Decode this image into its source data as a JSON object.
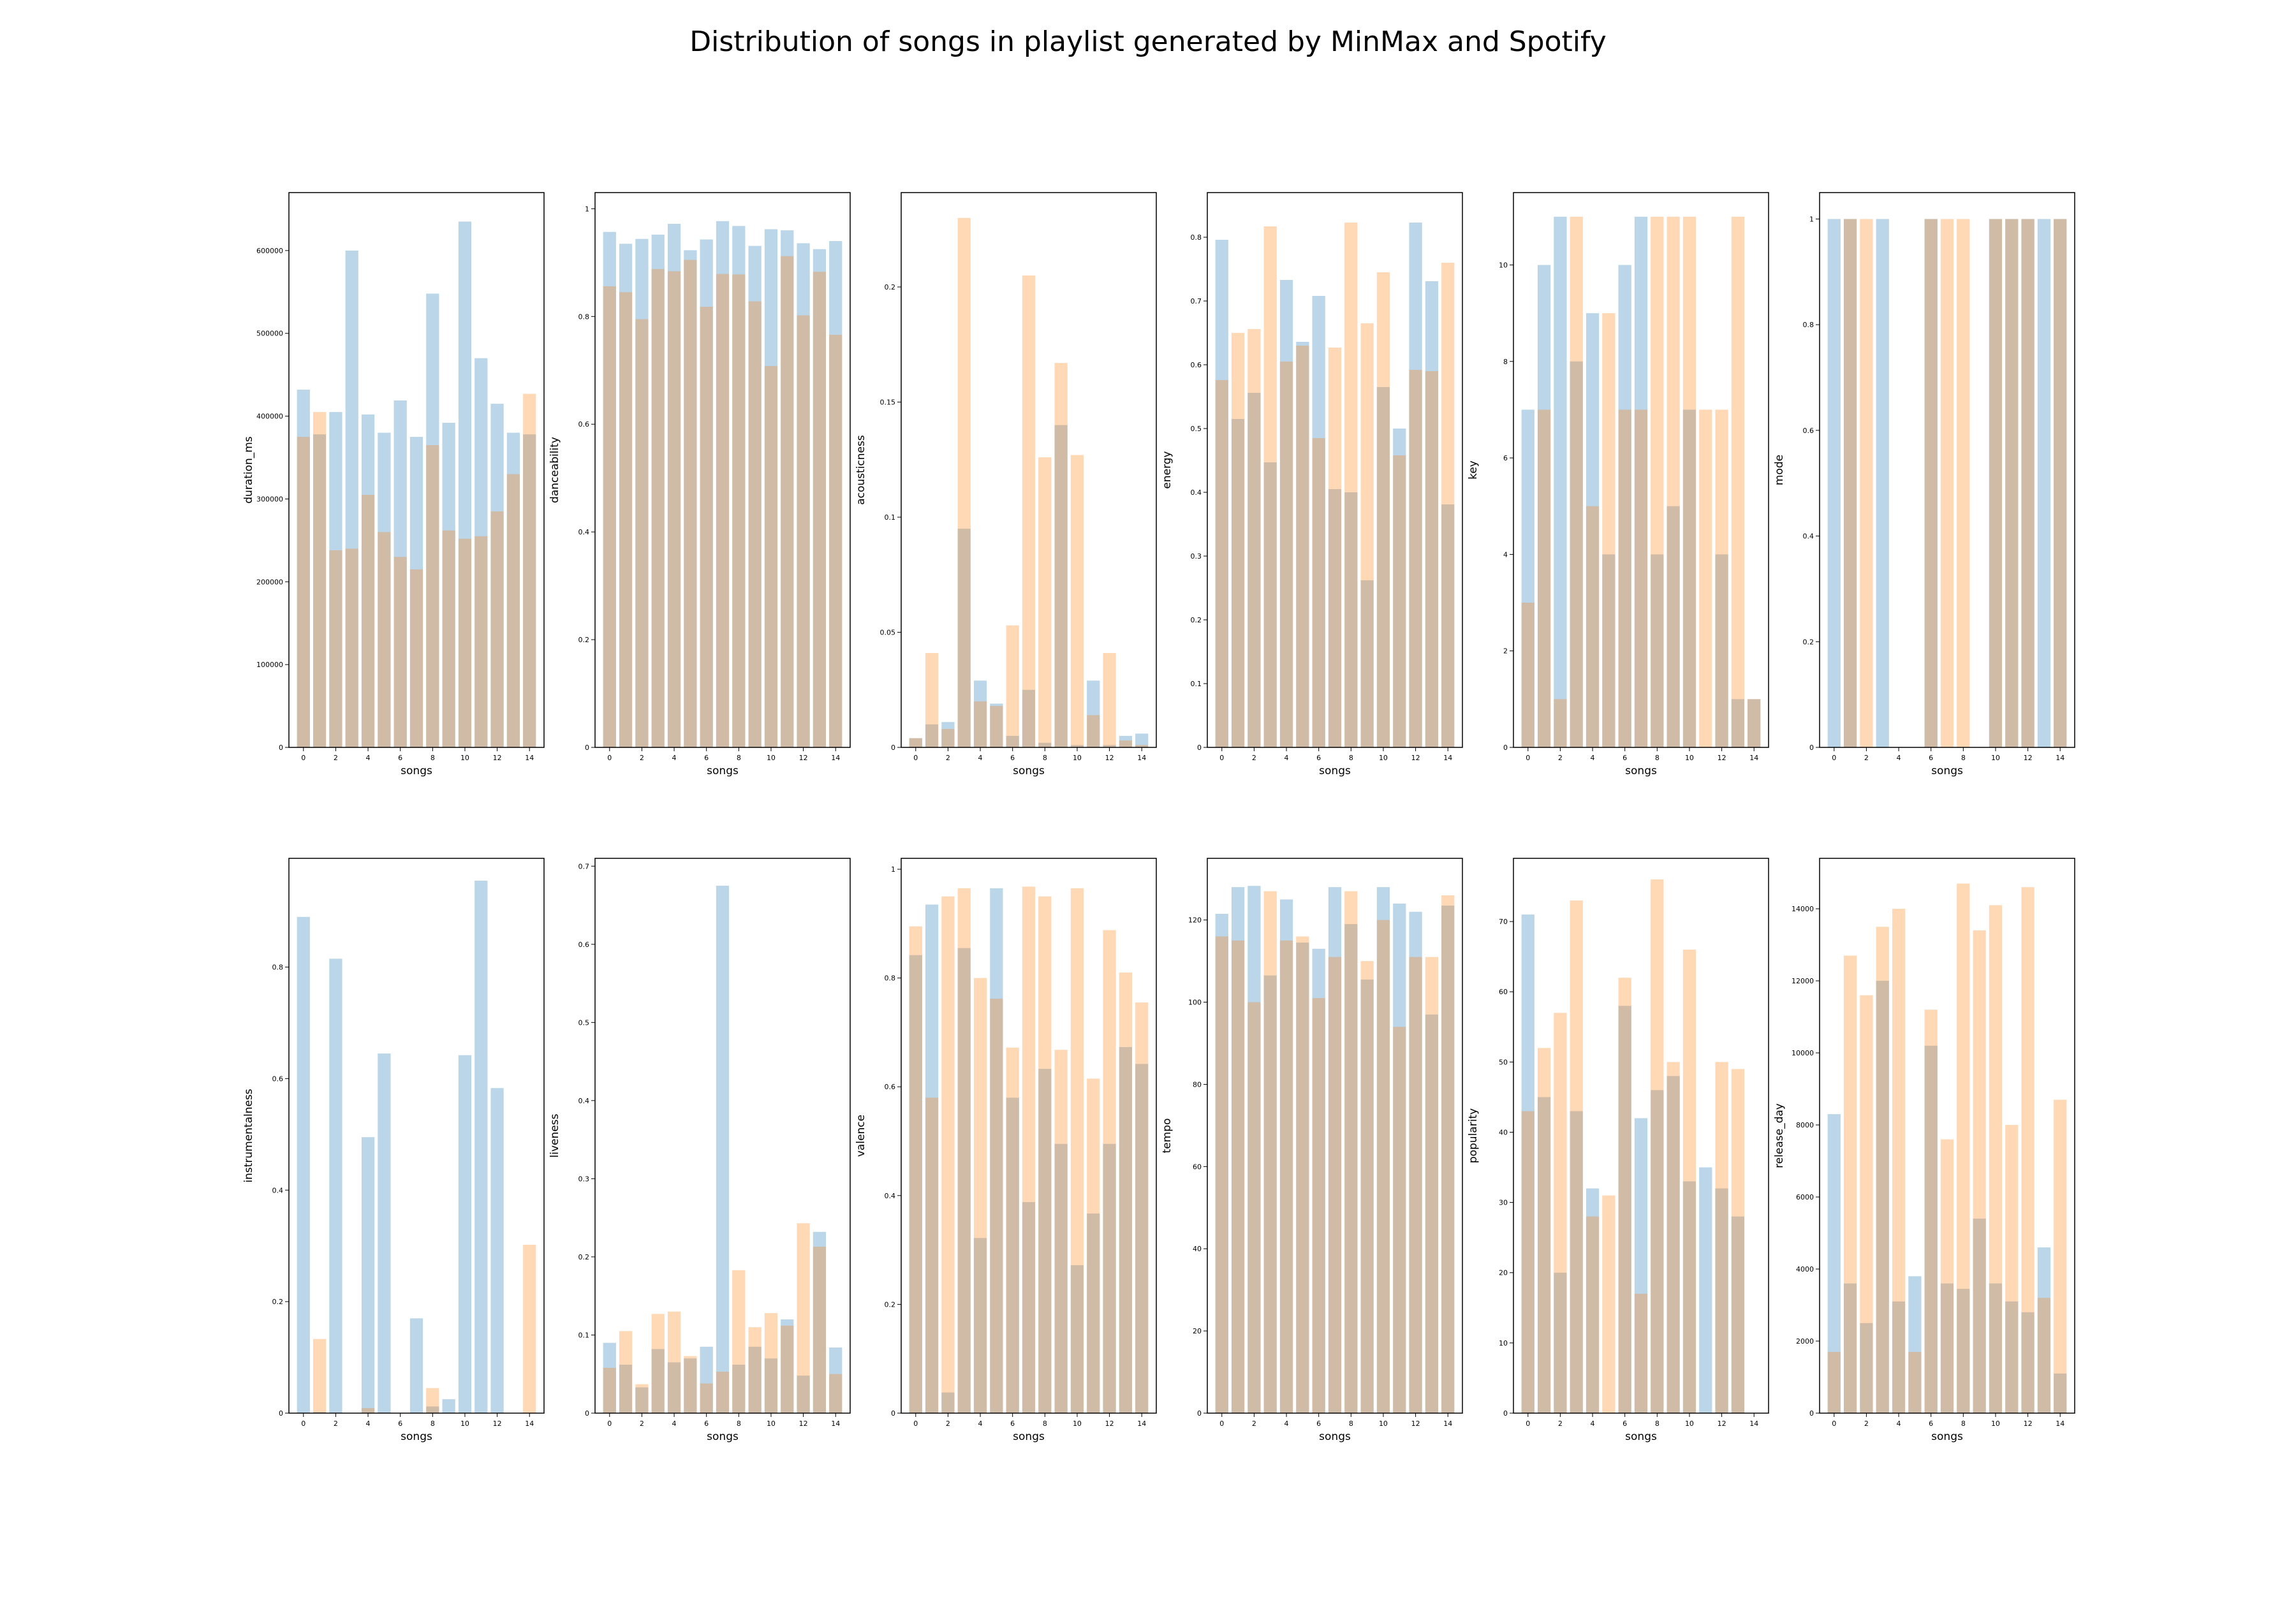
{
  "figure": {
    "title": "Distribution of songs in playlist generated by MinMax and Spotify",
    "colors": {
      "minmax": "#1f77b4",
      "spotify": "#ff7f0e",
      "bar_alpha": 0.3
    }
  },
  "chart_data": [
    {
      "type": "bar",
      "xlabel": "songs",
      "ylabel": "duration_ms",
      "categories": [
        0,
        1,
        2,
        3,
        4,
        5,
        6,
        7,
        8,
        9,
        10,
        11,
        12,
        13,
        14
      ],
      "xticks": [
        0,
        2,
        4,
        6,
        8,
        10,
        12,
        14
      ],
      "ylim": [
        0,
        670000
      ],
      "yticks": [
        0,
        100000,
        200000,
        300000,
        400000,
        500000,
        600000
      ],
      "series": [
        {
          "color": "#1f77b4",
          "values": [
            432000,
            378000,
            405000,
            600000,
            402000,
            380000,
            419000,
            375000,
            548000,
            392000,
            635000,
            470000,
            415000,
            380000,
            378000
          ]
        },
        {
          "color": "#ff7f0e",
          "values": [
            375000,
            405000,
            238000,
            240000,
            305000,
            260000,
            230000,
            215000,
            365000,
            262000,
            252000,
            255000,
            285000,
            330000,
            427000
          ]
        }
      ]
    },
    {
      "type": "bar",
      "xlabel": "songs",
      "ylabel": "danceability",
      "categories": [
        0,
        1,
        2,
        3,
        4,
        5,
        6,
        7,
        8,
        9,
        10,
        11,
        12,
        13,
        14
      ],
      "xticks": [
        0,
        2,
        4,
        6,
        8,
        10,
        12,
        14
      ],
      "ylim": [
        0,
        1.03
      ],
      "yticks": [
        0.0,
        0.2,
        0.4,
        0.6,
        0.8,
        1.0
      ],
      "series": [
        {
          "color": "#1f77b4",
          "values": [
            0.957,
            0.935,
            0.944,
            0.952,
            0.972,
            0.923,
            0.943,
            0.977,
            0.968,
            0.931,
            0.962,
            0.96,
            0.936,
            0.925,
            0.94
          ]
        },
        {
          "color": "#ff7f0e",
          "values": [
            0.856,
            0.845,
            0.795,
            0.888,
            0.884,
            0.905,
            0.818,
            0.879,
            0.878,
            0.828,
            0.708,
            0.912,
            0.802,
            0.883,
            0.766
          ]
        }
      ]
    },
    {
      "type": "bar",
      "xlabel": "songs",
      "ylabel": "acousticness",
      "categories": [
        0,
        1,
        2,
        3,
        4,
        5,
        6,
        7,
        8,
        9,
        10,
        11,
        12,
        13,
        14
      ],
      "xticks": [
        0,
        2,
        4,
        6,
        8,
        10,
        12,
        14
      ],
      "ylim": [
        0,
        0.241
      ],
      "yticks": [
        0.0,
        0.05,
        0.1,
        0.15,
        0.2
      ],
      "series": [
        {
          "color": "#1f77b4",
          "values": [
            0.004,
            0.01,
            0.011,
            0.095,
            0.029,
            0.019,
            0.005,
            0.025,
            0.002,
            0.14,
            0.001,
            0.029,
            0.001,
            0.005,
            0.006
          ]
        },
        {
          "color": "#ff7f0e",
          "values": [
            0.004,
            0.041,
            0.008,
            0.23,
            0.02,
            0.018,
            0.053,
            0.205,
            0.126,
            0.167,
            0.127,
            0.014,
            0.041,
            0.003,
            0.001
          ]
        }
      ]
    },
    {
      "type": "bar",
      "xlabel": "songs",
      "ylabel": "energy",
      "categories": [
        0,
        1,
        2,
        3,
        4,
        5,
        6,
        7,
        8,
        9,
        10,
        11,
        12,
        13,
        14
      ],
      "xticks": [
        0,
        2,
        4,
        6,
        8,
        10,
        12,
        14
      ],
      "ylim": [
        0,
        0.87
      ],
      "yticks": [
        0.0,
        0.1,
        0.2,
        0.3,
        0.4,
        0.5,
        0.6,
        0.7,
        0.8
      ],
      "series": [
        {
          "color": "#1f77b4",
          "values": [
            0.796,
            0.515,
            0.556,
            0.447,
            0.733,
            0.636,
            0.708,
            0.405,
            0.4,
            0.262,
            0.565,
            0.5,
            0.823,
            0.731,
            0.381
          ]
        },
        {
          "color": "#ff7f0e",
          "values": [
            0.576,
            0.65,
            0.656,
            0.817,
            0.605,
            0.63,
            0.485,
            0.627,
            0.823,
            0.665,
            0.745,
            0.458,
            0.592,
            0.59,
            0.76
          ]
        }
      ]
    },
    {
      "type": "bar",
      "xlabel": "songs",
      "ylabel": "key",
      "categories": [
        0,
        1,
        2,
        3,
        4,
        5,
        6,
        7,
        8,
        9,
        10,
        11,
        12,
        13,
        14
      ],
      "xticks": [
        0,
        2,
        4,
        6,
        8,
        10,
        12,
        14
      ],
      "ylim": [
        0,
        11.5
      ],
      "yticks": [
        0,
        2,
        4,
        6,
        8,
        10
      ],
      "series": [
        {
          "color": "#1f77b4",
          "values": [
            7,
            10,
            11,
            8,
            9,
            4,
            10,
            11,
            4,
            5,
            7,
            0,
            4,
            1,
            1
          ]
        },
        {
          "color": "#ff7f0e",
          "values": [
            3,
            7,
            1,
            11,
            5,
            9,
            7,
            7,
            11,
            11,
            11,
            7,
            7,
            11,
            1
          ]
        }
      ]
    },
    {
      "type": "bar",
      "xlabel": "songs",
      "ylabel": "mode",
      "categories": [
        0,
        1,
        2,
        3,
        4,
        5,
        6,
        7,
        8,
        9,
        10,
        11,
        12,
        13,
        14
      ],
      "xticks": [
        0,
        2,
        4,
        6,
        8,
        10,
        12,
        14
      ],
      "ylim": [
        0,
        1.05
      ],
      "yticks": [
        0.0,
        0.2,
        0.4,
        0.6,
        0.8,
        1.0
      ],
      "series": [
        {
          "color": "#1f77b4",
          "values": [
            1,
            1,
            0,
            1,
            0,
            0,
            1,
            0,
            0,
            0,
            1,
            1,
            1,
            1,
            1
          ]
        },
        {
          "color": "#ff7f0e",
          "values": [
            0,
            1,
            1,
            0,
            0,
            0,
            1,
            1,
            1,
            0,
            1,
            1,
            1,
            0,
            1
          ]
        }
      ]
    },
    {
      "type": "bar",
      "xlabel": "songs",
      "ylabel": "instrumentalness",
      "categories": [
        0,
        1,
        2,
        3,
        4,
        5,
        6,
        7,
        8,
        9,
        10,
        11,
        12,
        13,
        14
      ],
      "xticks": [
        0,
        2,
        4,
        6,
        8,
        10,
        12,
        14
      ],
      "ylim": [
        0,
        0.995
      ],
      "yticks": [
        0.0,
        0.2,
        0.4,
        0.6,
        0.8
      ],
      "series": [
        {
          "color": "#1f77b4",
          "values": [
            0.89,
            0.002,
            0.815,
            0.0,
            0.495,
            0.645,
            0.0,
            0.17,
            0.012,
            0.025,
            0.642,
            0.955,
            0.583,
            0.0,
            0.0
          ]
        },
        {
          "color": "#ff7f0e",
          "values": [
            0.0,
            0.133,
            0.0,
            0.0,
            0.009,
            0.001,
            0.0,
            0.0,
            0.045,
            0.0,
            0.0,
            0.0,
            0.0,
            0.0,
            0.302
          ]
        }
      ]
    },
    {
      "type": "bar",
      "xlabel": "songs",
      "ylabel": "liveness",
      "categories": [
        0,
        1,
        2,
        3,
        4,
        5,
        6,
        7,
        8,
        9,
        10,
        11,
        12,
        13,
        14
      ],
      "xticks": [
        0,
        2,
        4,
        6,
        8,
        10,
        12,
        14
      ],
      "ylim": [
        0,
        0.71
      ],
      "yticks": [
        0.0,
        0.1,
        0.2,
        0.3,
        0.4,
        0.5,
        0.6,
        0.7
      ],
      "series": [
        {
          "color": "#1f77b4",
          "values": [
            0.09,
            0.062,
            0.033,
            0.082,
            0.065,
            0.07,
            0.085,
            0.675,
            0.062,
            0.085,
            0.07,
            0.12,
            0.048,
            0.232,
            0.084
          ]
        },
        {
          "color": "#ff7f0e",
          "values": [
            0.058,
            0.105,
            0.037,
            0.127,
            0.13,
            0.073,
            0.038,
            0.053,
            0.183,
            0.11,
            0.128,
            0.112,
            0.243,
            0.213,
            0.05
          ]
        }
      ]
    },
    {
      "type": "bar",
      "xlabel": "songs",
      "ylabel": "valence",
      "categories": [
        0,
        1,
        2,
        3,
        4,
        5,
        6,
        7,
        8,
        9,
        10,
        11,
        12,
        13,
        14
      ],
      "xticks": [
        0,
        2,
        4,
        6,
        8,
        10,
        12,
        14
      ],
      "ylim": [
        0,
        1.02
      ],
      "yticks": [
        0.0,
        0.2,
        0.4,
        0.6,
        0.8,
        1.0
      ],
      "series": [
        {
          "color": "#1f77b4",
          "values": [
            0.842,
            0.935,
            0.038,
            0.855,
            0.322,
            0.965,
            0.58,
            0.388,
            0.633,
            0.495,
            0.272,
            0.367,
            0.495,
            0.673,
            0.642
          ]
        },
        {
          "color": "#ff7f0e",
          "values": [
            0.895,
            0.58,
            0.95,
            0.965,
            0.8,
            0.762,
            0.672,
            0.968,
            0.95,
            0.668,
            0.965,
            0.615,
            0.888,
            0.81,
            0.755
          ]
        }
      ]
    },
    {
      "type": "bar",
      "xlabel": "songs",
      "ylabel": "tempo",
      "categories": [
        0,
        1,
        2,
        3,
        4,
        5,
        6,
        7,
        8,
        9,
        10,
        11,
        12,
        13,
        14
      ],
      "xticks": [
        0,
        2,
        4,
        6,
        8,
        10,
        12,
        14
      ],
      "ylim": [
        0,
        135
      ],
      "yticks": [
        0,
        20,
        40,
        60,
        80,
        100,
        120
      ],
      "series": [
        {
          "color": "#1f77b4",
          "values": [
            121.5,
            128,
            128.3,
            106.5,
            125,
            114.5,
            113,
            128,
            119,
            105.5,
            128,
            124,
            122,
            97,
            123.5
          ]
        },
        {
          "color": "#ff7f0e",
          "values": [
            116,
            115,
            100,
            127,
            115,
            116,
            101,
            111,
            127,
            110,
            120,
            94,
            111,
            111,
            126
          ]
        }
      ]
    },
    {
      "type": "bar",
      "xlabel": "songs",
      "ylabel": "popularity",
      "categories": [
        0,
        1,
        2,
        3,
        4,
        5,
        6,
        7,
        8,
        9,
        10,
        11,
        12,
        13,
        14
      ],
      "xticks": [
        0,
        2,
        4,
        6,
        8,
        10,
        12,
        14
      ],
      "ylim": [
        0,
        79
      ],
      "yticks": [
        0,
        10,
        20,
        30,
        40,
        50,
        60,
        70
      ],
      "series": [
        {
          "color": "#1f77b4",
          "values": [
            71,
            45,
            20,
            43,
            32,
            0,
            58,
            42,
            46,
            48,
            33,
            35,
            32,
            28,
            0
          ]
        },
        {
          "color": "#ff7f0e",
          "values": [
            43,
            52,
            57,
            73,
            28,
            31,
            62,
            17,
            76,
            50,
            66,
            0,
            50,
            49,
            0
          ]
        }
      ]
    },
    {
      "type": "bar",
      "xlabel": "songs",
      "ylabel": "release_day",
      "categories": [
        0,
        1,
        2,
        3,
        4,
        5,
        6,
        7,
        8,
        9,
        10,
        11,
        12,
        13,
        14
      ],
      "xticks": [
        0,
        2,
        4,
        6,
        8,
        10,
        12,
        14
      ],
      "ylim": [
        0,
        15400
      ],
      "yticks": [
        0,
        2000,
        4000,
        6000,
        8000,
        10000,
        12000,
        14000
      ],
      "series": [
        {
          "color": "#1f77b4",
          "values": [
            8300,
            3600,
            2500,
            12000,
            3100,
            3800,
            10200,
            3600,
            3450,
            5400,
            3600,
            3100,
            2800,
            4600,
            1100
          ]
        },
        {
          "color": "#ff7f0e",
          "values": [
            1700,
            12700,
            11600,
            13500,
            14000,
            1700,
            11200,
            7600,
            14700,
            13400,
            14100,
            8000,
            14600,
            3200,
            8700
          ]
        }
      ]
    }
  ]
}
